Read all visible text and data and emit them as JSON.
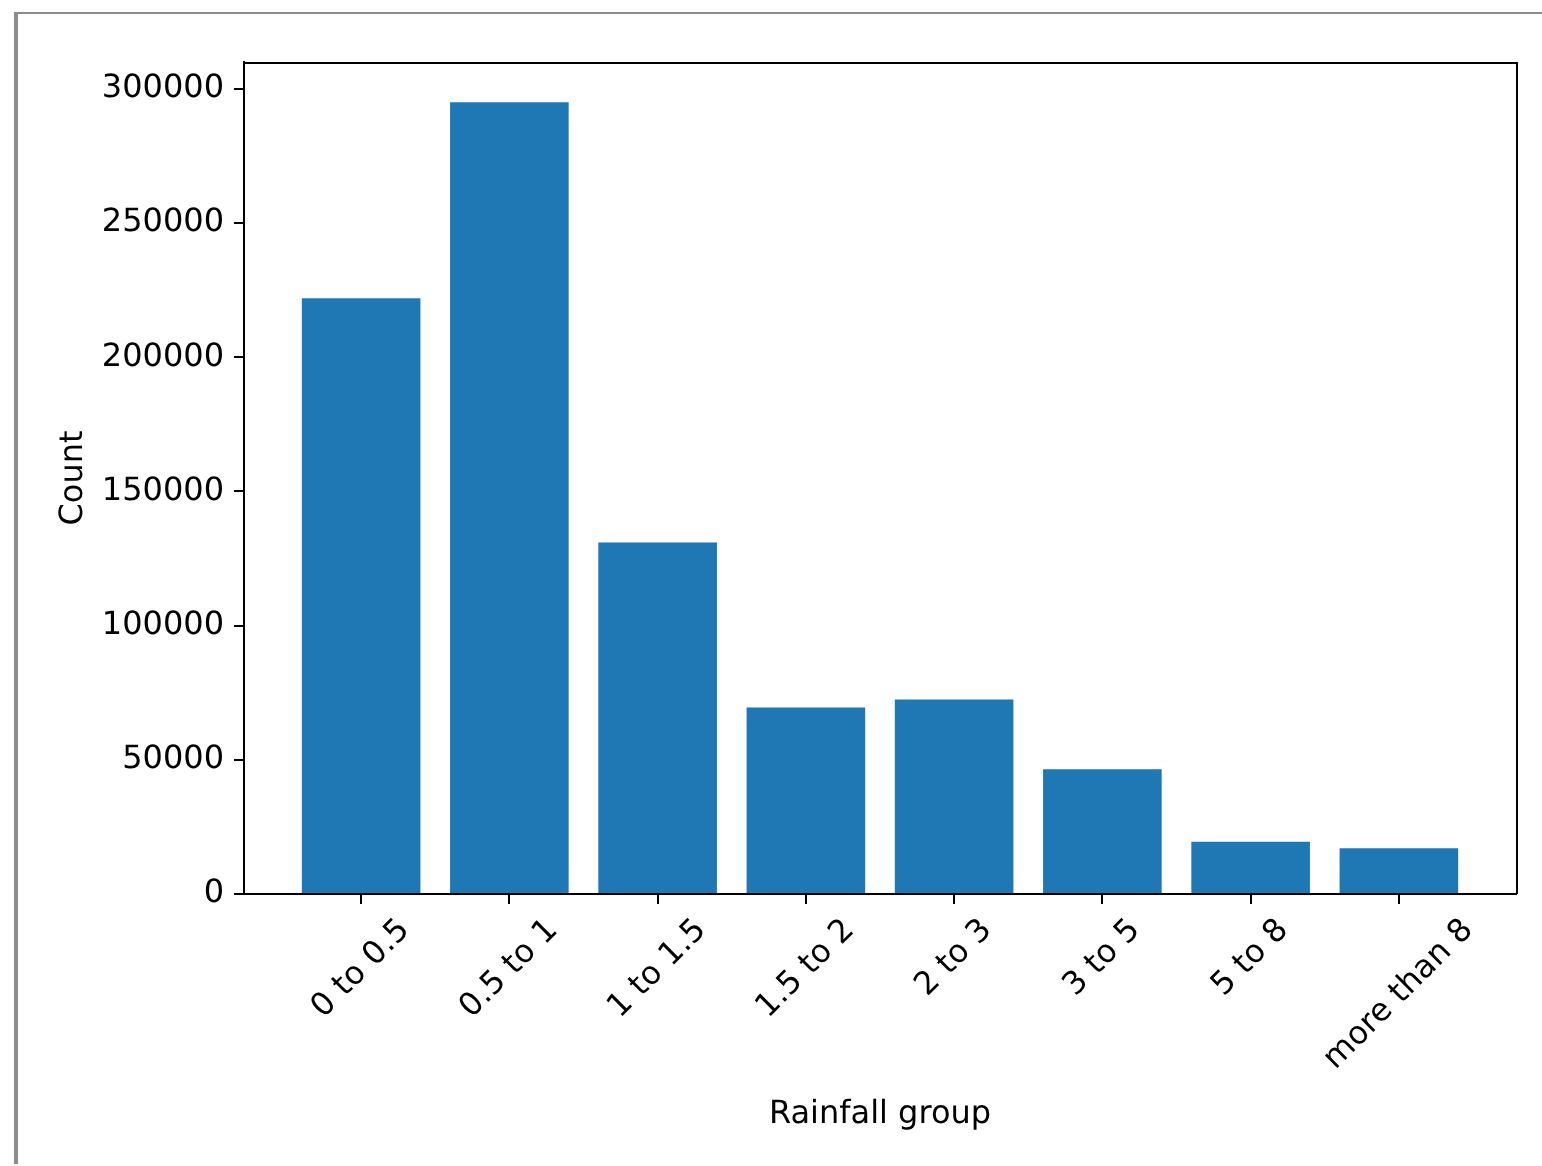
{
  "chart_data": {
    "type": "bar",
    "xlabel": "Rainfall group",
    "ylabel": "Count",
    "categories": [
      "0 to 0.5",
      "0.5 to 1",
      "1 to 1.5",
      "1.5 to 2",
      "2 to 3",
      "3 to 5",
      "5 to 8",
      "more than 8"
    ],
    "values": [
      222000,
      295000,
      131000,
      69500,
      72500,
      46500,
      19500,
      17000
    ],
    "color": "#1f77b4",
    "ylim": [
      0,
      310000
    ],
    "yticks": [
      0,
      50000,
      100000,
      150000,
      200000,
      250000,
      300000
    ],
    "grid": false
  }
}
